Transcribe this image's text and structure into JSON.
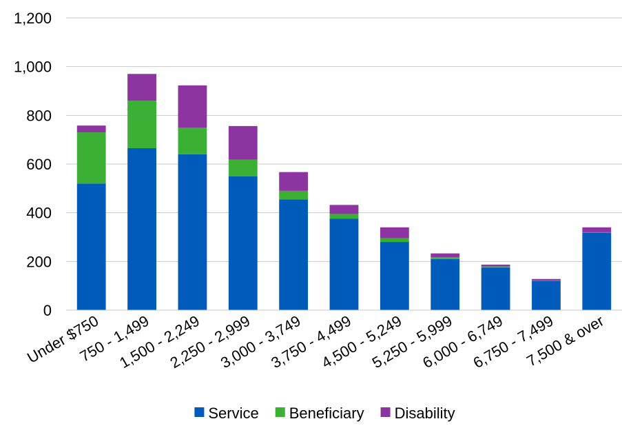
{
  "chart_data": {
    "type": "bar",
    "stacked": true,
    "categories": [
      "Under $750",
      "750 - 1,499",
      "1,500 - 2,249",
      "2,250 - 2,999",
      "3,000 - 3,749",
      "3,750 - 4,499",
      "4,500 - 5,249",
      "5,250 - 5,999",
      "6,000 - 6,749",
      "6,750 - 7,499",
      "7,500 & over"
    ],
    "series": [
      {
        "name": "Service",
        "color": "#005bbb",
        "values": [
          520,
          665,
          640,
          550,
          455,
          375,
          280,
          210,
          175,
          120,
          318
        ]
      },
      {
        "name": "Beneficiary",
        "color": "#3cb035",
        "values": [
          210,
          195,
          110,
          68,
          35,
          20,
          15,
          8,
          5,
          2,
          2
        ]
      },
      {
        "name": "Disability",
        "color": "#8c34a0",
        "values": [
          28,
          110,
          173,
          138,
          77,
          37,
          45,
          15,
          7,
          6,
          20
        ]
      }
    ],
    "ylim": [
      0,
      1200
    ],
    "yticks": [
      0,
      200,
      400,
      600,
      800,
      1000,
      1200
    ],
    "ytick_labels": [
      "0",
      "200",
      "400",
      "600",
      "800",
      "1,000",
      "1,200"
    ],
    "grid": true,
    "legend_position": "bottom",
    "title": "",
    "xlabel": "",
    "ylabel": ""
  }
}
